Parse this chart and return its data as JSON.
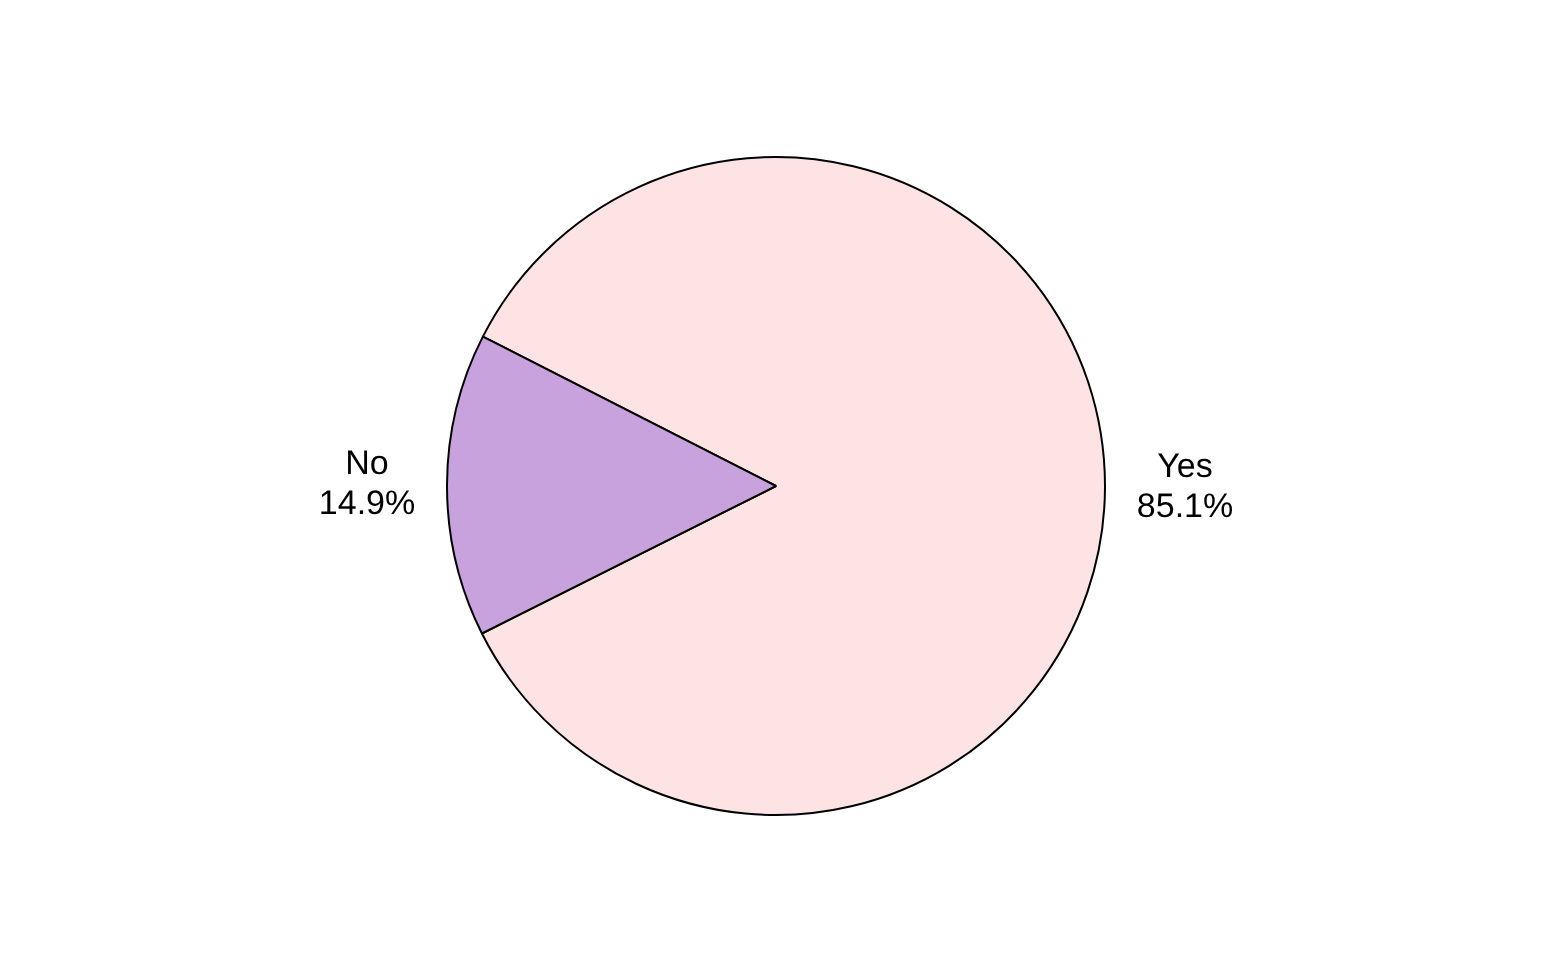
{
  "chart_data": {
    "type": "pie",
    "categories": [
      "Yes",
      "No"
    ],
    "values": [
      85.1,
      14.9
    ],
    "colors": [
      "#fde3e3",
      "#c8a2dc"
    ],
    "value_labels": [
      "85.1%",
      "14.9%"
    ],
    "legend": false
  }
}
